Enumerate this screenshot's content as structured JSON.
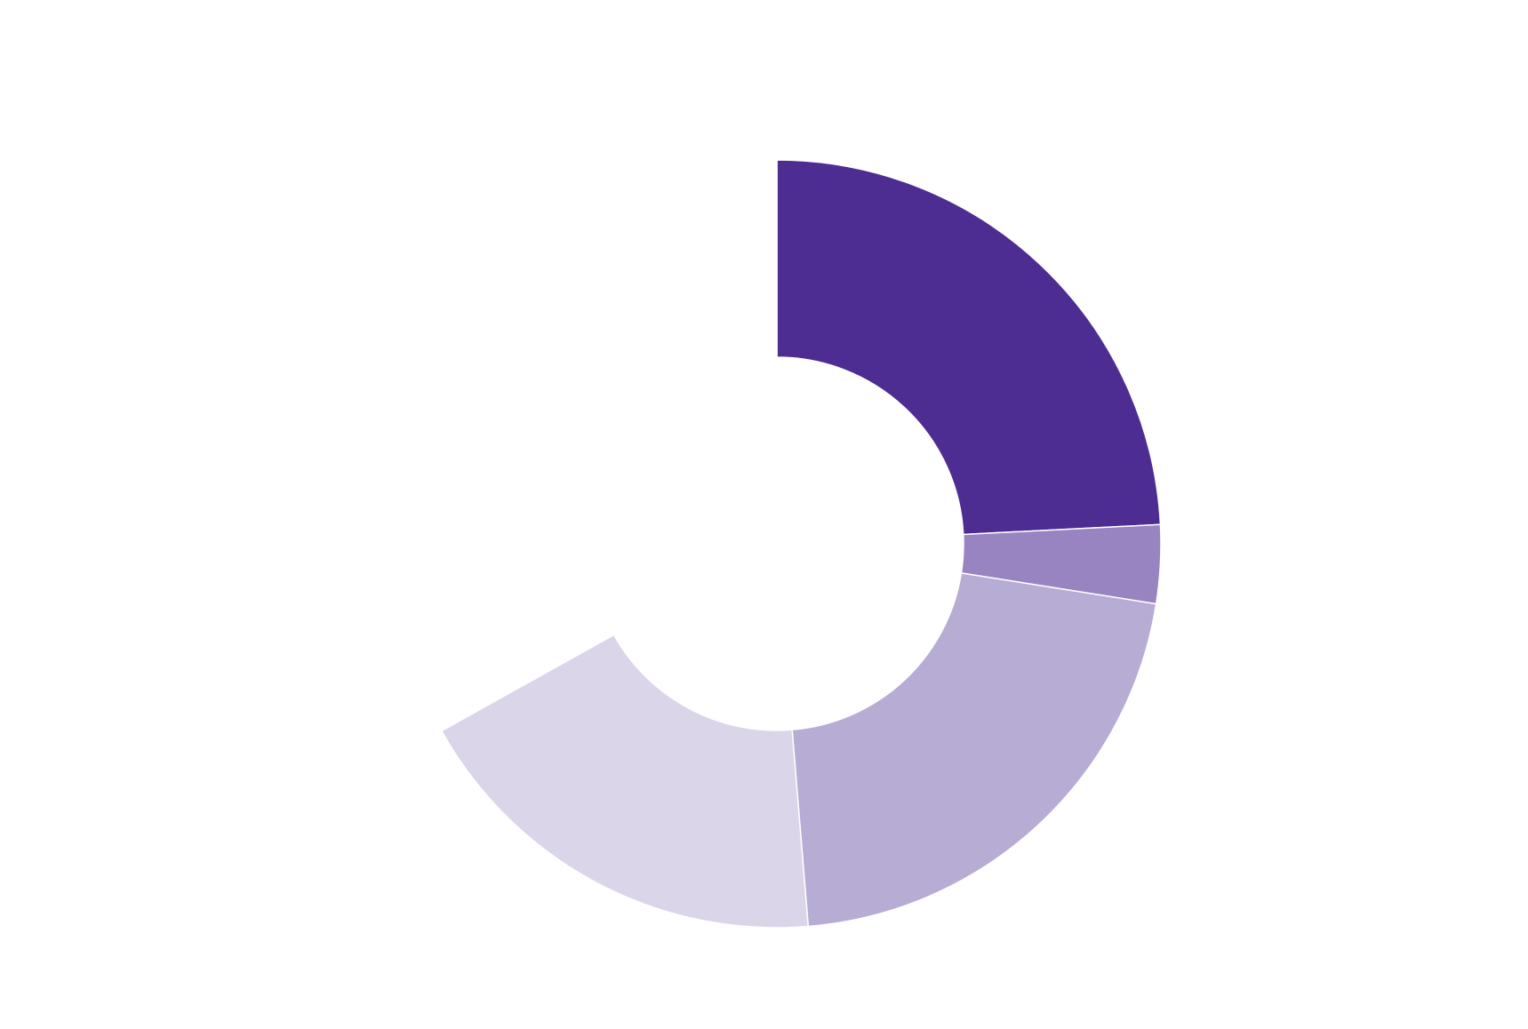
{
  "chart_data": {
    "type": "pie",
    "variant": "donut",
    "start_angle": "top",
    "direction": "clockwise",
    "legend": "none",
    "title": "",
    "slices": [
      {
        "value": 24.2,
        "color": "#4e2d93"
      },
      {
        "value": 3.3,
        "color": "#9984c2"
      },
      {
        "value": 21.2,
        "color": "#b7acd4"
      },
      {
        "value": 18.2,
        "color": "#dad5e9"
      },
      {
        "value": 33.1,
        "color": "#ffffff"
      }
    ]
  }
}
